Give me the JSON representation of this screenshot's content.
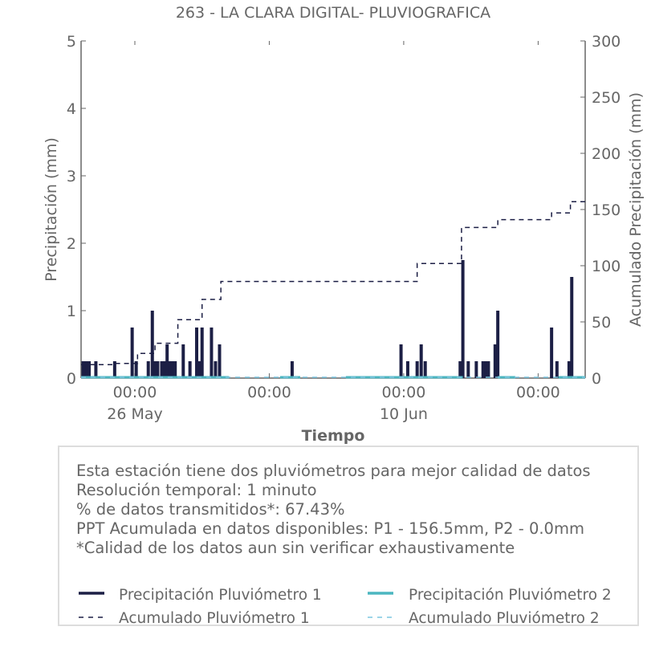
{
  "colors": {
    "p1": "#1c1f45",
    "p2": "#4cb6c0",
    "acc1": "#1c1f45",
    "acc2": "#7cc6e0",
    "text": "#666666",
    "axis": "#666666",
    "box_border": "#dddddd"
  },
  "chart_data": {
    "type": "bar",
    "title": "263 - LA CLARA DIGITAL- PLUVIOGRAFICA",
    "xlabel": "Tiempo",
    "ylabel": "Precipitación (mm)",
    "y2label": "Acumulado Precipitación (mm)",
    "ylim": [
      0,
      5
    ],
    "y2lim": [
      0,
      300
    ],
    "yticks": [
      "0",
      "1",
      "2",
      "3",
      "4",
      "5"
    ],
    "y2ticks": [
      "0",
      "50",
      "100",
      "150",
      "200",
      "250",
      "300"
    ],
    "xlim_days": [
      0,
      37.5
    ],
    "xticks": [
      {
        "day": 4,
        "label": "00:00",
        "sublabel": "26 May"
      },
      {
        "day": 14,
        "label": "00:00",
        "sublabel": ""
      },
      {
        "day": 24,
        "label": "00:00",
        "sublabel": "10 Jun"
      },
      {
        "day": 34,
        "label": "00:00",
        "sublabel": ""
      }
    ],
    "grid": false,
    "series": [
      {
        "name": "Precipitación Pluviómetro 1",
        "kind": "bar",
        "axis": "left",
        "x": [
          0.15,
          0.3,
          0.45,
          0.6,
          1.1,
          2.5,
          3.8,
          4.1,
          5.0,
          5.3,
          5.5,
          5.7,
          6.0,
          6.2,
          6.4,
          6.6,
          6.8,
          7.0,
          7.6,
          8.1,
          8.6,
          8.8,
          9.0,
          9.7,
          10.0,
          10.3,
          15.7,
          23.8,
          24.3,
          25.0,
          25.3,
          25.6,
          28.2,
          28.4,
          28.8,
          29.4,
          29.9,
          30.1,
          30.3,
          30.8,
          31.0,
          35.0,
          35.4,
          36.3,
          36.5
        ],
        "values": [
          0.25,
          0.25,
          0.25,
          0.25,
          0.25,
          0.25,
          0.75,
          0.25,
          0.25,
          1.0,
          0.25,
          0.25,
          0.25,
          0.25,
          0.5,
          0.25,
          0.25,
          0.25,
          0.5,
          0.25,
          0.75,
          0.25,
          0.75,
          0.75,
          0.25,
          0.5,
          0.25,
          0.5,
          0.25,
          0.25,
          0.5,
          0.25,
          0.25,
          1.75,
          0.25,
          0.25,
          0.25,
          0.25,
          0.25,
          0.5,
          1.0,
          0.75,
          0.25,
          0.25,
          1.5
        ]
      },
      {
        "name": "Precipitación Pluviómetro 2",
        "kind": "line",
        "axis": "left",
        "segments": [
          [
            0,
            11
          ],
          [
            14.8,
            16.3
          ],
          [
            19.7,
            28.4
          ],
          [
            31.0,
            32.3
          ],
          [
            35.5,
            37.5
          ]
        ],
        "value": 0
      },
      {
        "name": "Acumulado Pluviómetro 1",
        "kind": "step",
        "axis": "right",
        "x": [
          0,
          2.5,
          4.2,
          5.5,
          7.2,
          9.0,
          10.4,
          23.0,
          25.0,
          28.3,
          31.0,
          35.0,
          36.4,
          37.5
        ],
        "values": [
          12,
          13,
          22,
          31,
          52,
          70,
          86,
          86,
          102,
          134,
          141,
          147,
          157,
          157
        ]
      },
      {
        "name": "Acumulado Pluviómetro 2",
        "kind": "dashed",
        "axis": "right",
        "x": [
          0,
          37.5
        ],
        "values": [
          0,
          0
        ]
      }
    ]
  },
  "info": {
    "lines": [
      "Esta estación tiene dos pluviómetros para mejor calidad de datos",
      "Resolución temporal: 1 minuto",
      "% de datos transmitidos*: 67.43%",
      "PPT Acumulada en datos disponibles: P1 - 156.5mm, P2 - 0.0mm",
      "*Calidad de los datos aun sin verificar exhaustivamente"
    ]
  },
  "legend": [
    {
      "label": "Precipitación Pluviómetro 1",
      "style": "solid-dark"
    },
    {
      "label": "Precipitación Pluviómetro 2",
      "style": "solid-teal"
    },
    {
      "label": "Acumulado Pluviómetro 1",
      "style": "dash-dark"
    },
    {
      "label": "Acumulado Pluviómetro 2",
      "style": "dash-light"
    }
  ]
}
